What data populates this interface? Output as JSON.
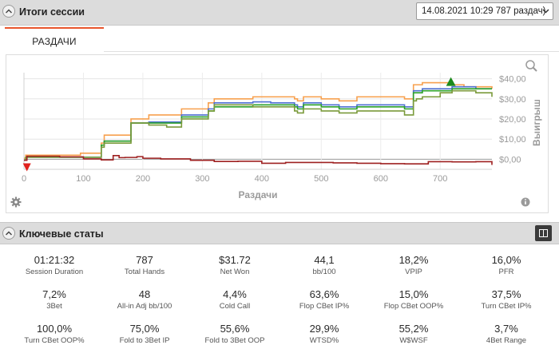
{
  "header": {
    "title": "Итоги сессии",
    "session_selector_value": "14.08.2021 10:29 787 раздач)"
  },
  "tabs": [
    {
      "label": "РАЗДАЧИ",
      "active": true
    }
  ],
  "chart_panel": {
    "icons": [
      "zoom-icon",
      "gear-icon",
      "info-icon"
    ],
    "chart_data": {
      "type": "line",
      "xlabel": "Раздачи",
      "ylabel": "Выигрыш",
      "x_ticks": [
        "0",
        "100",
        "200",
        "300",
        "400",
        "500",
        "600",
        "700"
      ],
      "y_ticks": [
        "$40,00",
        "$30,00",
        "$20,00",
        "$10,00",
        "$0,00"
      ],
      "xlim": [
        0,
        787
      ],
      "ylim": [
        -5,
        43
      ],
      "grid": true,
      "markers": [
        {
          "kind": "min",
          "x": 5,
          "y": -4,
          "color": "#e0201c"
        },
        {
          "kind": "max",
          "x": 718,
          "y": 38,
          "color": "#1c8a1c"
        }
      ],
      "series": [
        {
          "color": "#f7a04e",
          "points": [
            [
              0,
              0.5
            ],
            [
              3,
              2
            ],
            [
              45,
              2
            ],
            [
              95,
              3
            ],
            [
              125,
              3
            ],
            [
              130,
              8
            ],
            [
              135,
              12
            ],
            [
              175,
              12
            ],
            [
              180,
              20
            ],
            [
              205,
              20
            ],
            [
              210,
              22
            ],
            [
              260,
              22
            ],
            [
              265,
              25
            ],
            [
              300,
              25
            ],
            [
              310,
              28
            ],
            [
              320,
              30
            ],
            [
              380,
              30
            ],
            [
              385,
              31
            ],
            [
              410,
              31
            ],
            [
              415,
              31
            ],
            [
              455,
              30
            ],
            [
              460,
              29
            ],
            [
              470,
              31
            ],
            [
              500,
              30
            ],
            [
              530,
              29
            ],
            [
              560,
              31
            ],
            [
              620,
              31
            ],
            [
              640,
              30
            ],
            [
              650,
              30
            ],
            [
              655,
              37
            ],
            [
              660,
              37
            ],
            [
              670,
              38
            ],
            [
              720,
              37
            ],
            [
              740,
              36
            ],
            [
              760,
              36
            ],
            [
              787,
              35
            ]
          ]
        },
        {
          "color": "#4d6fd2",
          "points": [
            [
              0,
              -0.5
            ],
            [
              3,
              1
            ],
            [
              45,
              1
            ],
            [
              95,
              1
            ],
            [
              125,
              1
            ],
            [
              130,
              7
            ],
            [
              135,
              9
            ],
            [
              175,
              9
            ],
            [
              180,
              18
            ],
            [
              205,
              18
            ],
            [
              210,
              18.5
            ],
            [
              260,
              18.5
            ],
            [
              265,
              22
            ],
            [
              300,
              22
            ],
            [
              310,
              25
            ],
            [
              320,
              28
            ],
            [
              380,
              28
            ],
            [
              385,
              28.5
            ],
            [
              410,
              28.5
            ],
            [
              415,
              28
            ],
            [
              455,
              27
            ],
            [
              460,
              26
            ],
            [
              470,
              28
            ],
            [
              500,
              27
            ],
            [
              530,
              26
            ],
            [
              560,
              27
            ],
            [
              620,
              27
            ],
            [
              640,
              26
            ],
            [
              650,
              26
            ],
            [
              655,
              34
            ],
            [
              660,
              34
            ],
            [
              670,
              35
            ],
            [
              720,
              36
            ],
            [
              740,
              36
            ],
            [
              760,
              35
            ],
            [
              787,
              35
            ]
          ]
        },
        {
          "color": "#2aa02a",
          "points": [
            [
              0,
              -0.5
            ],
            [
              3,
              1
            ],
            [
              45,
              1
            ],
            [
              95,
              1
            ],
            [
              125,
              1
            ],
            [
              130,
              7
            ],
            [
              135,
              9
            ],
            [
              175,
              9
            ],
            [
              180,
              18
            ],
            [
              205,
              18
            ],
            [
              210,
              18
            ],
            [
              260,
              18
            ],
            [
              265,
              21
            ],
            [
              300,
              21
            ],
            [
              310,
              24
            ],
            [
              320,
              26
            ],
            [
              380,
              26
            ],
            [
              385,
              27
            ],
            [
              410,
              27
            ],
            [
              415,
              27
            ],
            [
              455,
              26
            ],
            [
              460,
              25
            ],
            [
              470,
              27
            ],
            [
              500,
              26
            ],
            [
              530,
              25
            ],
            [
              560,
              26
            ],
            [
              620,
              26
            ],
            [
              640,
              25
            ],
            [
              650,
              25
            ],
            [
              655,
              33
            ],
            [
              660,
              33
            ],
            [
              670,
              34
            ],
            [
              720,
              35
            ],
            [
              740,
              35
            ],
            [
              760,
              35
            ],
            [
              787,
              35
            ]
          ]
        },
        {
          "color": "#7a9a3a",
          "points": [
            [
              0,
              -0.5
            ],
            [
              3,
              1
            ],
            [
              45,
              1
            ],
            [
              95,
              1
            ],
            [
              125,
              1
            ],
            [
              130,
              6
            ],
            [
              135,
              8
            ],
            [
              175,
              8
            ],
            [
              180,
              18
            ],
            [
              205,
              18
            ],
            [
              210,
              17
            ],
            [
              230,
              17
            ],
            [
              240,
              16
            ],
            [
              260,
              16
            ],
            [
              265,
              20
            ],
            [
              300,
              20
            ],
            [
              310,
              24
            ],
            [
              320,
              27
            ],
            [
              380,
              27
            ],
            [
              385,
              26
            ],
            [
              410,
              26
            ],
            [
              415,
              26
            ],
            [
              455,
              24
            ],
            [
              460,
              23
            ],
            [
              470,
              25
            ],
            [
              500,
              24
            ],
            [
              530,
              23
            ],
            [
              560,
              24
            ],
            [
              620,
              24
            ],
            [
              640,
              22
            ],
            [
              650,
              22
            ],
            [
              655,
              29
            ],
            [
              660,
              30
            ],
            [
              670,
              31
            ],
            [
              700,
              33
            ],
            [
              720,
              34
            ],
            [
              740,
              34
            ],
            [
              760,
              33
            ],
            [
              787,
              31
            ]
          ]
        },
        {
          "color": "#9e2020",
          "points": [
            [
              0,
              -0.5
            ],
            [
              5,
              1.5
            ],
            [
              60,
              1.2
            ],
            [
              100,
              0.2
            ],
            [
              130,
              -0.3
            ],
            [
              150,
              1.8
            ],
            [
              160,
              0.8
            ],
            [
              170,
              0.9
            ],
            [
              190,
              1.3
            ],
            [
              200,
              0.5
            ],
            [
              230,
              0.2
            ],
            [
              280,
              -0.5
            ],
            [
              320,
              -1.1
            ],
            [
              360,
              -1.0
            ],
            [
              400,
              -2
            ],
            [
              440,
              -1.6
            ],
            [
              480,
              -1.6
            ],
            [
              520,
              -1.8
            ],
            [
              560,
              -2
            ],
            [
              600,
              -2.2
            ],
            [
              640,
              -2.3
            ],
            [
              680,
              -1.2
            ],
            [
              720,
              -1.3
            ],
            [
              760,
              -1.2
            ],
            [
              787,
              -2.8
            ]
          ]
        }
      ]
    }
  },
  "key_stats": {
    "title": "Ключевые статы",
    "items": [
      {
        "value": "01:21:32",
        "label": "Session Duration"
      },
      {
        "value": "787",
        "label": "Total Hands"
      },
      {
        "value": "$31.72",
        "label": "Net Won"
      },
      {
        "value": "44,1",
        "label": "bb/100"
      },
      {
        "value": "18,2%",
        "label": "VPIP"
      },
      {
        "value": "16,0%",
        "label": "PFR"
      },
      {
        "value": "7,2%",
        "label": "3Bet"
      },
      {
        "value": "48",
        "label": "All-in Adj bb/100"
      },
      {
        "value": "4,4%",
        "label": "Cold Call"
      },
      {
        "value": "63,6%",
        "label": "Flop CBet IP%"
      },
      {
        "value": "15,0%",
        "label": "Flop CBet OOP%"
      },
      {
        "value": "37,5%",
        "label": "Turn CBet IP%"
      },
      {
        "value": "100,0%",
        "label": "Turn CBet OOP%"
      },
      {
        "value": "75,0%",
        "label": "Fold to 3Bet IP"
      },
      {
        "value": "55,6%",
        "label": "Fold to 3Bet OOP"
      },
      {
        "value": "29,9%",
        "label": "WTSD%"
      },
      {
        "value": "55,2%",
        "label": "W$WSF"
      },
      {
        "value": "3,7%",
        "label": "4Bet Range"
      }
    ]
  }
}
